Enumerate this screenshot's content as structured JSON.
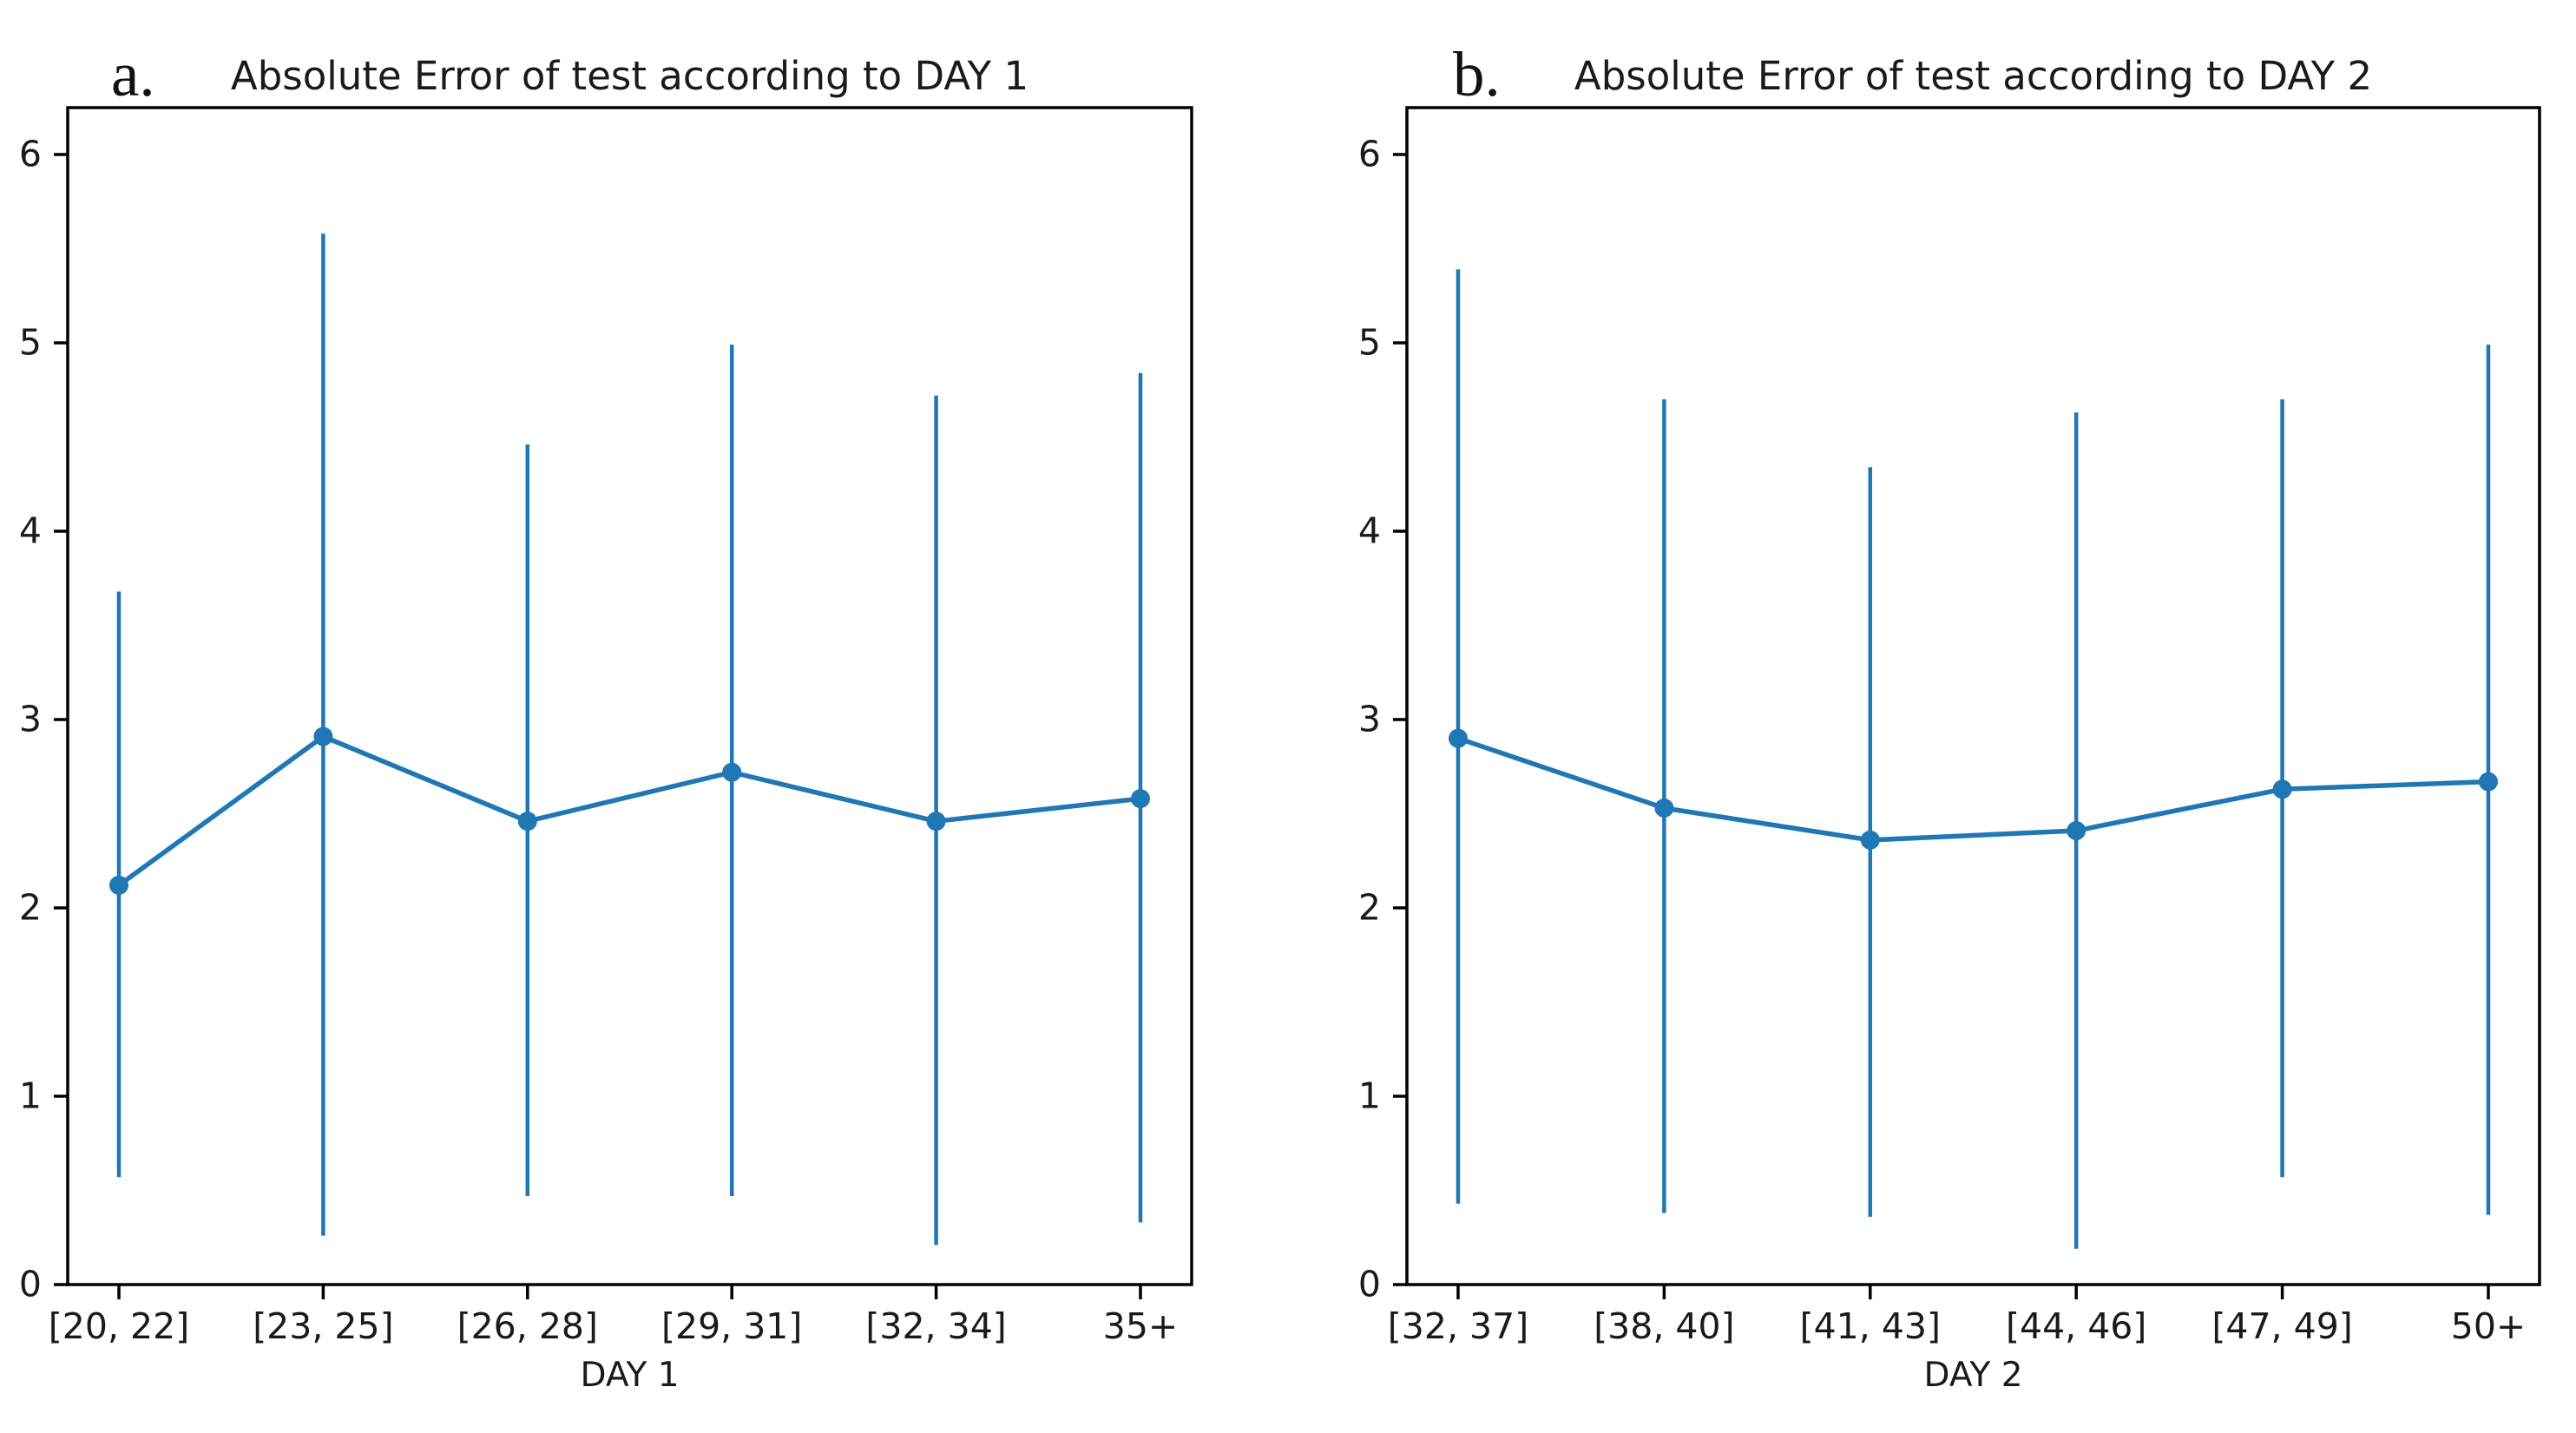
{
  "figure": {
    "background": "#ffffff",
    "text_color": "#1a1a1a",
    "accent_color": "#1f77b4"
  },
  "chart_data": [
    {
      "type": "line",
      "panel_label": "a.",
      "title": "Absolute Error of test according to DAY 1",
      "xlabel": "DAY 1",
      "ylabel": "",
      "categories": [
        "[20, 22]",
        "[23, 25]",
        "[26, 28]",
        "[29, 31]",
        "[32, 34]",
        "35+"
      ],
      "means": [
        2.12,
        2.91,
        2.46,
        2.72,
        2.46,
        2.58
      ],
      "error_top": [
        3.68,
        5.58,
        4.46,
        4.99,
        4.72,
        4.84
      ],
      "error_bottom": [
        0.57,
        0.26,
        0.47,
        0.47,
        0.21,
        0.33
      ],
      "yticks": [
        0,
        1,
        2,
        3,
        4,
        5,
        6
      ],
      "ylim": [
        0,
        6.25
      ],
      "grid": false,
      "legend": "none",
      "line_color": "#1f77b4",
      "marker": "circle"
    },
    {
      "type": "line",
      "panel_label": "b.",
      "title": "Absolute Error of test according to DAY 2",
      "xlabel": "DAY 2",
      "ylabel": "",
      "categories": [
        "[32, 37]",
        "[38, 40]",
        "[41, 43]",
        "[44, 46]",
        "[47, 49]",
        "50+"
      ],
      "means": [
        2.9,
        2.53,
        2.36,
        2.41,
        2.63,
        2.67
      ],
      "error_top": [
        5.39,
        4.7,
        4.34,
        4.63,
        4.7,
        4.99
      ],
      "error_bottom": [
        0.43,
        0.38,
        0.36,
        0.19,
        0.57,
        0.37
      ],
      "yticks": [
        0,
        1,
        2,
        3,
        4,
        5,
        6
      ],
      "ylim": [
        0,
        6.25
      ],
      "grid": false,
      "legend": "none",
      "line_color": "#1f77b4",
      "marker": "circle"
    }
  ]
}
